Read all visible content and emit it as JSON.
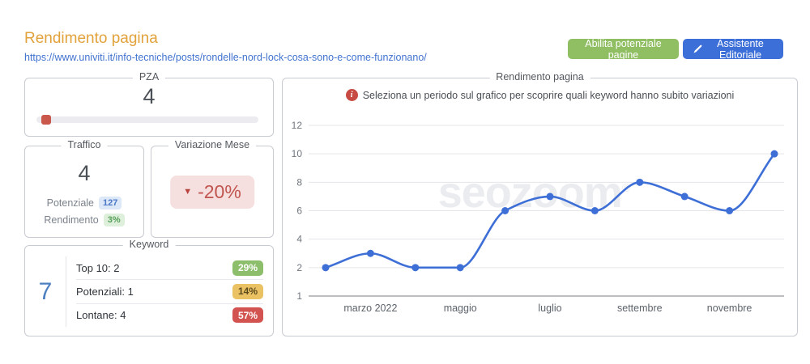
{
  "header": {
    "title": "Rendimento pagina",
    "url": "https://www.univiti.it/info-tecniche/posts/rondelle-nord-lock-cosa-sono-e-come-funzionano/",
    "buttons": {
      "enable_potential": {
        "label": "Abilita potenziale pagine",
        "bg": "#90BE63"
      },
      "editorial_assistant": {
        "label": "Assistente Editoriale",
        "icon": "pencil-icon",
        "bg": "#3D6FD8"
      }
    }
  },
  "panels": {
    "pza": {
      "label": "PZA",
      "value": "4",
      "bar_percent": 4.5,
      "bar_color": "#C9574B"
    },
    "traffico": {
      "label": "Traffico",
      "value": "4",
      "rows": [
        {
          "label": "Potenziale",
          "badge": "127",
          "badge_bg": "#DCE7F8",
          "badge_text": "#4B79C8"
        },
        {
          "label": "Rendimento",
          "badge": "3%",
          "badge_bg": "#DEEFDB",
          "badge_text": "#57A05A"
        }
      ]
    },
    "variazione": {
      "label": "Variazione Mese",
      "value": "-20%",
      "trend": "down",
      "arrow": "▼",
      "badge_bg": "#F6DFDF",
      "text_color": "#C05550",
      "arrow_color": "#B8443E"
    },
    "keyword": {
      "label": "Keyword",
      "total": "7",
      "rows": [
        {
          "label": "Top 10: 2",
          "badge": "29%",
          "badge_bg": "#8CBE6C",
          "badge_text": "#FFFFFF"
        },
        {
          "label": "Potenziali: 1",
          "badge": "14%",
          "badge_bg": "#EBC263",
          "badge_text": "#5C4A1E"
        },
        {
          "label": "Lontane: 4",
          "badge": "57%",
          "badge_bg": "#D2534F",
          "badge_text": "#FFFFFF"
        }
      ]
    }
  },
  "chart_panel": {
    "label": "Rendimento pagina",
    "notice": "Seleziona un periodo sul grafico per scoprire quali keyword hanno subito variazioni",
    "watermark": "seozoom",
    "watermark_mark": "®"
  },
  "chart_data": {
    "type": "line",
    "title": "Rendimento pagina",
    "values": [
      2,
      3,
      2,
      2,
      6,
      7,
      6,
      8,
      7,
      6,
      10
    ],
    "x_tick_labels": [
      "marzo 2022",
      "maggio",
      "luglio",
      "settembre",
      "novembre"
    ],
    "x_tick_indices": [
      1,
      3,
      5,
      7,
      9
    ],
    "y_ticks": [
      1,
      2,
      4,
      6,
      8,
      10,
      12
    ],
    "ylim": [
      1,
      12
    ],
    "xlabel": "",
    "ylabel": "",
    "grid": true,
    "legend_position": "none",
    "line_color": "#3E6FD6",
    "marker_color": "#3E6FD6"
  }
}
